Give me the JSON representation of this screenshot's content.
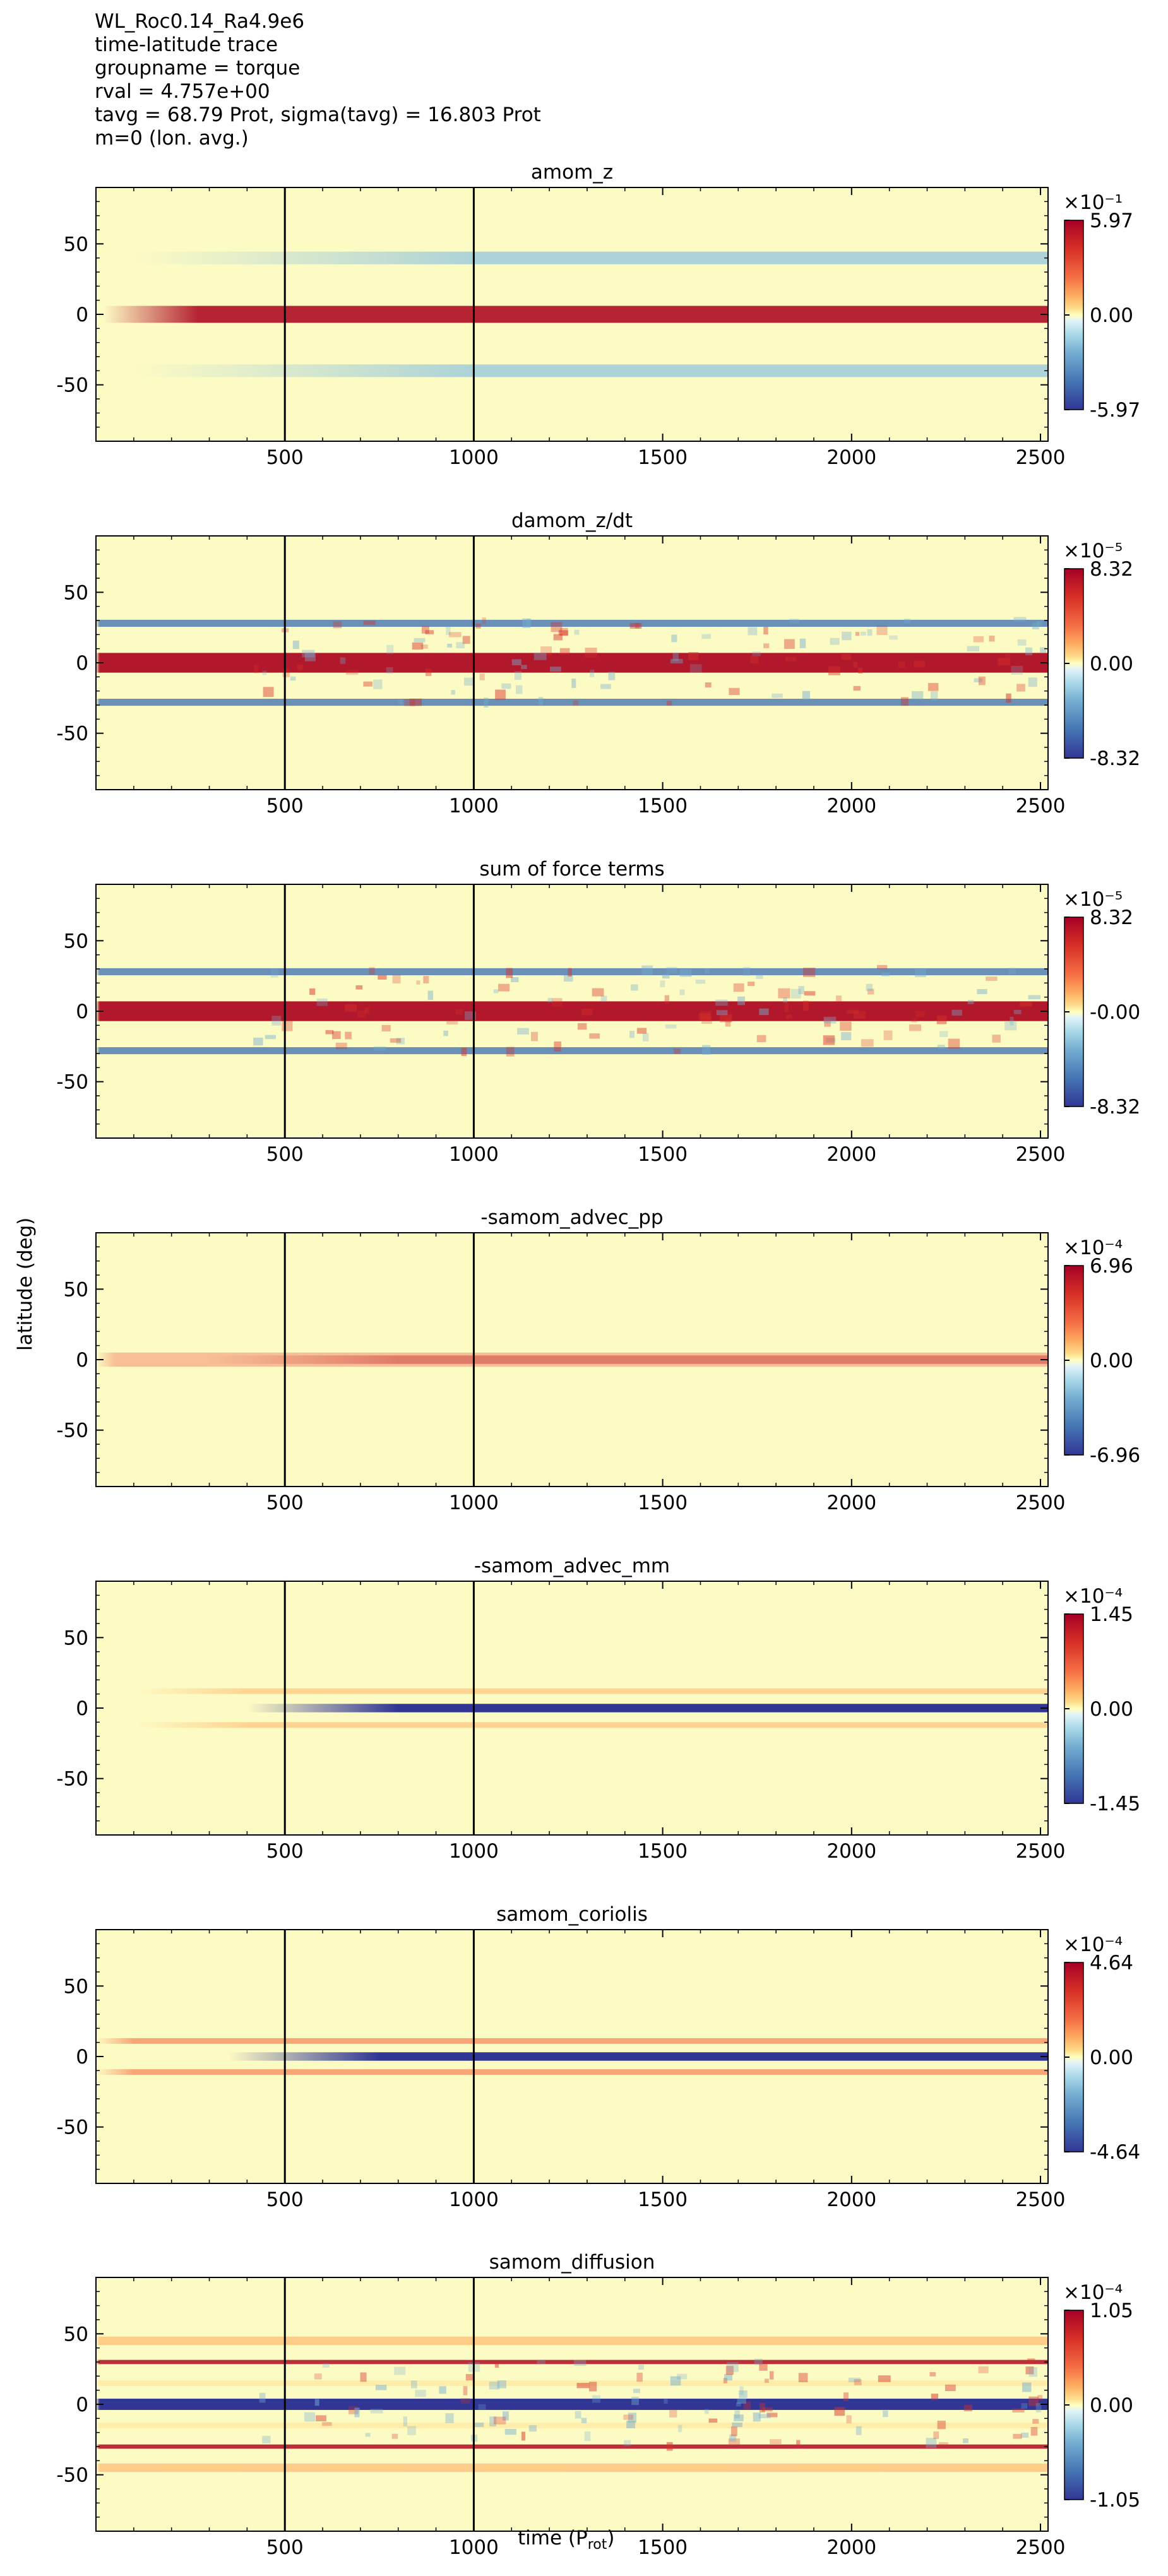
{
  "header": {
    "lines": [
      "WL_Roc0.14_Ra4.9e6",
      "time-latitude trace",
      "groupname = torque",
      "rval = 4.757e+00",
      "tavg = 68.79 Prot, sigma(tavg) = 16.803 Prot",
      "m=0 (lon. avg.)"
    ]
  },
  "axes": {
    "ylabel": "latitude (deg)",
    "xlabel_main": "time (P",
    "xlabel_sub": "rot",
    "xlabel_close": ")"
  },
  "chart_data": [
    {
      "type": "heatmap",
      "title": "amom_z",
      "xlim": [
        0,
        2520
      ],
      "ylim": [
        -90,
        90
      ],
      "xticks": [
        "500",
        "1000",
        "1500",
        "2000",
        "2500"
      ],
      "yticks": [
        "50",
        "0",
        "-50"
      ],
      "vlines": [
        500,
        1000
      ],
      "colorbar": {
        "exponent": "×10⁻¹",
        "max": "5.97",
        "mid": "0.00",
        "min": "-5.97"
      },
      "bands": [
        {
          "lat": 0,
          "width": 12,
          "color": "#b2182b",
          "amp": 0.95,
          "start": 20,
          "ramp": 250
        },
        {
          "lat": 40,
          "width": 9,
          "color": "#92c5de",
          "amp": 0.75,
          "start": 100,
          "ramp": 900
        },
        {
          "lat": -40,
          "width": 9,
          "color": "#92c5de",
          "amp": 0.75,
          "start": 100,
          "ramp": 900
        }
      ],
      "noise": 0
    },
    {
      "type": "heatmap",
      "title": "damom_z/dt",
      "xlim": [
        0,
        2520
      ],
      "ylim": [
        -90,
        90
      ],
      "xticks": [
        "500",
        "1000",
        "1500",
        "2000",
        "2500"
      ],
      "yticks": [
        "50",
        "0",
        "-50"
      ],
      "vlines": [
        500,
        1000
      ],
      "colorbar": {
        "exponent": "×10⁻⁵",
        "max": "8.32",
        "mid": "0.00",
        "min": "-8.32"
      },
      "bands": [
        {
          "lat": 0,
          "width": 14,
          "color": "#b2182b",
          "amp": 1.0,
          "start": 0,
          "ramp": 10
        },
        {
          "lat": 28,
          "width": 5,
          "color": "#4575b4",
          "amp": 0.8,
          "start": 0,
          "ramp": 10
        },
        {
          "lat": -28,
          "width": 5,
          "color": "#4575b4",
          "amp": 0.8,
          "start": 0,
          "ramp": 10
        }
      ],
      "noise": 1
    },
    {
      "type": "heatmap",
      "title": "sum of force terms",
      "xlim": [
        0,
        2520
      ],
      "ylim": [
        -90,
        90
      ],
      "xticks": [
        "500",
        "1000",
        "1500",
        "2000",
        "2500"
      ],
      "yticks": [
        "50",
        "0",
        "-50"
      ],
      "vlines": [
        500,
        1000
      ],
      "colorbar": {
        "exponent": "×10⁻⁵",
        "max": "8.32",
        "mid": "-0.00",
        "min": "-8.32"
      },
      "bands": [
        {
          "lat": 0,
          "width": 14,
          "color": "#b2182b",
          "amp": 1.0,
          "start": 0,
          "ramp": 10
        },
        {
          "lat": 28,
          "width": 5,
          "color": "#4575b4",
          "amp": 0.8,
          "start": 0,
          "ramp": 10
        },
        {
          "lat": -28,
          "width": 5,
          "color": "#4575b4",
          "amp": 0.8,
          "start": 0,
          "ramp": 10
        }
      ],
      "noise": 1
    },
    {
      "type": "heatmap",
      "title": "-samom_advec_pp",
      "xlim": [
        0,
        2520
      ],
      "ylim": [
        -90,
        90
      ],
      "xticks": [
        "500",
        "1000",
        "1500",
        "2000",
        "2500"
      ],
      "yticks": [
        "50",
        "0",
        "-50"
      ],
      "vlines": [
        500,
        1000
      ],
      "colorbar": {
        "exponent": "×10⁻⁴",
        "max": "6.96",
        "mid": "0.00",
        "min": "-6.96"
      },
      "bands": [
        {
          "lat": 0,
          "width": 6,
          "color": "#b2182b",
          "amp": 1.0,
          "start": 300,
          "ramp": 500
        },
        {
          "lat": 0,
          "width": 10,
          "color": "#f4a582",
          "amp": 0.7,
          "start": 0,
          "ramp": 50
        }
      ],
      "noise": 0
    },
    {
      "type": "heatmap",
      "title": "-samom_advec_mm",
      "xlim": [
        0,
        2520
      ],
      "ylim": [
        -90,
        90
      ],
      "xticks": [
        "500",
        "1000",
        "1500",
        "2000",
        "2500"
      ],
      "yticks": [
        "50",
        "0",
        "-50"
      ],
      "vlines": [
        500,
        1000
      ],
      "colorbar": {
        "exponent": "×10⁻⁴",
        "max": "1.45",
        "mid": "0.00",
        "min": "-1.45"
      },
      "bands": [
        {
          "lat": 0,
          "width": 6,
          "color": "#313695",
          "amp": 1.0,
          "start": 400,
          "ramp": 400
        },
        {
          "lat": 12,
          "width": 4,
          "color": "#fdae61",
          "amp": 0.5,
          "start": 100,
          "ramp": 300
        },
        {
          "lat": -12,
          "width": 4,
          "color": "#fdae61",
          "amp": 0.5,
          "start": 100,
          "ramp": 300
        }
      ],
      "noise": 0
    },
    {
      "type": "heatmap",
      "title": "samom_coriolis",
      "xlim": [
        0,
        2520
      ],
      "ylim": [
        -90,
        90
      ],
      "xticks": [
        "500",
        "1000",
        "1500",
        "2000",
        "2500"
      ],
      "yticks": [
        "50",
        "0",
        "-50"
      ],
      "vlines": [
        500,
        1000
      ],
      "colorbar": {
        "exponent": "×10⁻⁴",
        "max": "4.64",
        "mid": "0.00",
        "min": "-4.64"
      },
      "bands": [
        {
          "lat": 0,
          "width": 6,
          "color": "#313695",
          "amp": 1.0,
          "start": 350,
          "ramp": 400
        },
        {
          "lat": 11,
          "width": 4,
          "color": "#f46d43",
          "amp": 0.6,
          "start": 0,
          "ramp": 100
        },
        {
          "lat": -11,
          "width": 4,
          "color": "#f46d43",
          "amp": 0.6,
          "start": 0,
          "ramp": 100
        }
      ],
      "noise": 0
    },
    {
      "type": "heatmap",
      "title": "samom_diffusion",
      "xlim": [
        0,
        2520
      ],
      "ylim": [
        -90,
        90
      ],
      "xticks": [
        "500",
        "1000",
        "1500",
        "2000",
        "2500"
      ],
      "yticks": [
        "50",
        "0",
        "-50"
      ],
      "vlines": [
        500,
        1000
      ],
      "colorbar": {
        "exponent": "×10⁻⁴",
        "max": "1.05",
        "mid": "0.00",
        "min": "-1.05"
      },
      "bands": [
        {
          "lat": 0,
          "width": 8,
          "color": "#313695",
          "amp": 1.0,
          "start": 0,
          "ramp": 10
        },
        {
          "lat": 30,
          "width": 3,
          "color": "#b2182b",
          "amp": 0.9,
          "start": 0,
          "ramp": 10
        },
        {
          "lat": -30,
          "width": 3,
          "color": "#b2182b",
          "amp": 0.9,
          "start": 0,
          "ramp": 10
        },
        {
          "lat": 45,
          "width": 6,
          "color": "#fdae61",
          "amp": 0.6,
          "start": 0,
          "ramp": 10
        },
        {
          "lat": -45,
          "width": 6,
          "color": "#fdae61",
          "amp": 0.6,
          "start": 0,
          "ramp": 10
        },
        {
          "lat": 15,
          "width": 4,
          "color": "#fee090",
          "amp": 0.5,
          "start": 0,
          "ramp": 10
        },
        {
          "lat": -15,
          "width": 4,
          "color": "#fee090",
          "amp": 0.5,
          "start": 0,
          "ramp": 10
        }
      ],
      "noise": 1
    }
  ]
}
